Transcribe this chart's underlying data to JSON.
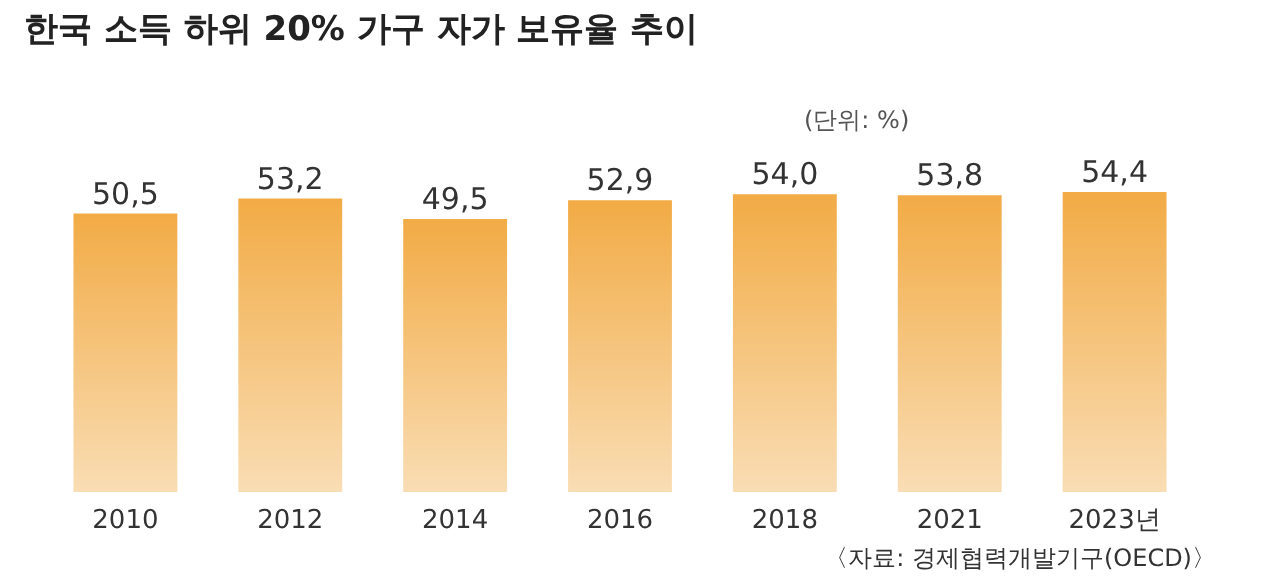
{
  "chart_data": {
    "type": "bar",
    "title": "한국 소득 하위 20% 가구 자가 보유율 추이",
    "annotations": [
      "(단위: %)",
      "〈자료: 경제협력개발기구(OECD)〉"
    ],
    "categories": [
      "2010",
      "2012",
      "2014",
      "2016",
      "2018",
      "2021",
      "2023년"
    ],
    "values": [
      50.5,
      53.2,
      49.5,
      52.9,
      54.0,
      53.8,
      54.4
    ],
    "value_labels": [
      "50,5",
      "53,2",
      "49,5",
      "52,9",
      "54,0",
      "53,8",
      "54,4"
    ],
    "color": "#f2ab45",
    "grid": false
  }
}
